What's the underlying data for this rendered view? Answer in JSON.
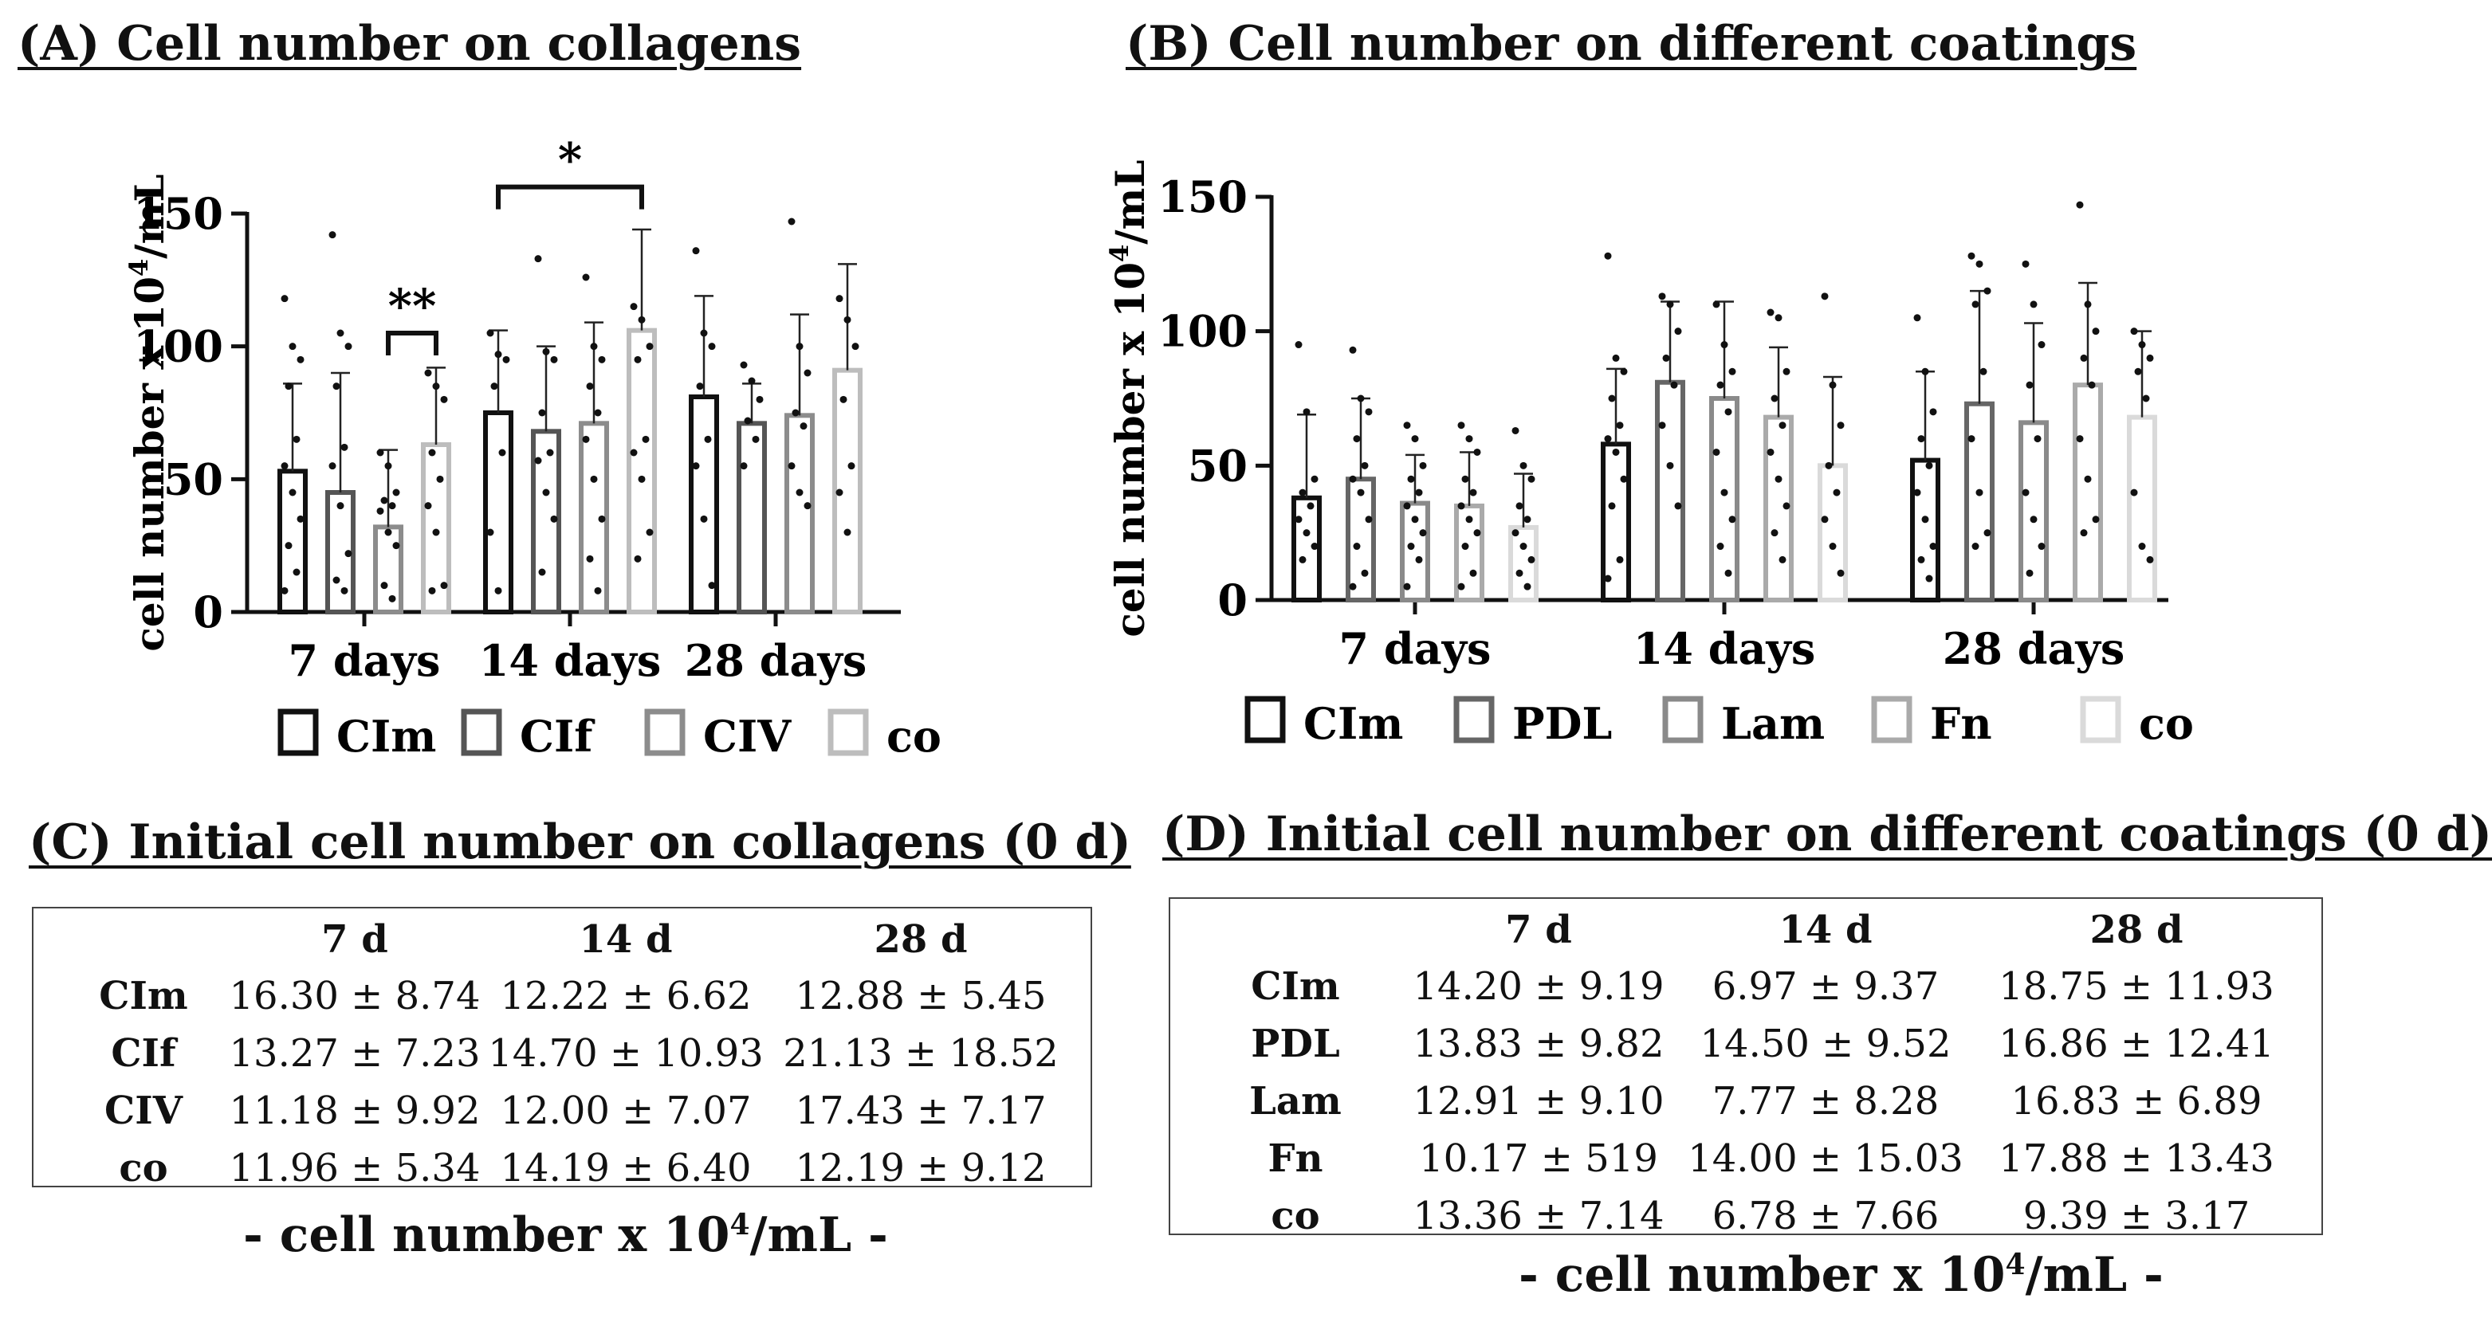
{
  "panel_a": {
    "title": "(A) Cell number on collagens"
  },
  "panel_b": {
    "title": "(B) Cell number on different coatings"
  },
  "panel_c": {
    "title": "(C) Initial cell number on collagens (0 d)",
    "columns": [
      "7 d",
      "14 d",
      "28 d"
    ],
    "rows": [
      {
        "label": "CIm",
        "values": [
          "16.30 ± 8.74",
          "12.22 ± 6.62",
          "12.88 ± 5.45"
        ]
      },
      {
        "label": "CIf",
        "values": [
          "13.27 ± 7.23",
          "14.70 ± 10.93",
          "21.13 ± 18.52"
        ]
      },
      {
        "label": "CIV",
        "values": [
          "11.18 ± 9.92",
          "12.00 ± 7.07",
          "17.43 ± 7.17"
        ]
      },
      {
        "label": "co",
        "values": [
          "11.96 ± 5.34",
          "14.19 ± 6.40",
          "12.19 ± 9.12"
        ]
      }
    ],
    "unit_prefix": "- cell number x 10",
    "unit_exp": "4",
    "unit_suffix": "/mL -"
  },
  "panel_d": {
    "title": "(D) Initial cell number on different coatings (0 d)",
    "columns": [
      "7 d",
      "14 d",
      "28 d"
    ],
    "rows": [
      {
        "label": "CIm",
        "values": [
          "14.20 ± 9.19",
          "6.97 ± 9.37",
          "18.75 ± 11.93"
        ]
      },
      {
        "label": "PDL",
        "values": [
          "13.83 ± 9.82",
          "14.50 ± 9.52",
          "16.86 ± 12.41"
        ]
      },
      {
        "label": "Lam",
        "values": [
          "12.91 ± 9.10",
          "7.77 ± 8.28",
          "16.83 ± 6.89"
        ]
      },
      {
        "label": "Fn",
        "values": [
          "10.17 ± 519",
          "14.00 ± 15.03",
          "17.88 ± 13.43"
        ]
      },
      {
        "label": "co",
        "values": [
          "13.36 ± 7.14",
          "6.78 ± 7.66",
          "9.39 ± 3.17"
        ]
      }
    ],
    "unit_prefix": "- cell number x 10",
    "unit_exp": "4",
    "unit_suffix": "/mL -"
  },
  "chart_data": [
    {
      "type": "bar",
      "id": "A",
      "title": "(A) Cell number on collagens",
      "ylabel_prefix": "cell number x 10",
      "ylabel_exp": "4",
      "ylabel_suffix": "/mL",
      "ylim": [
        0,
        150
      ],
      "yticks": [
        0,
        50,
        100,
        150
      ],
      "categories": [
        "7 days",
        "14 days",
        "28 days"
      ],
      "series": [
        {
          "name": "CIm",
          "color": "#111111",
          "values": [
            53,
            75,
            81
          ],
          "sd": [
            33,
            31,
            38
          ],
          "points": [
            [
              118,
              100,
              95,
              85,
              65,
              55,
              45,
              35,
              25,
              15,
              8
            ],
            [
              105,
              97,
              95,
              85,
              60,
              30,
              8
            ],
            [
              136,
              105,
              100,
              85,
              65,
              55,
              35,
              10
            ]
          ]
        },
        {
          "name": "CIf",
          "color": "#555555",
          "values": [
            45,
            68,
            71
          ],
          "sd": [
            45,
            32,
            15
          ],
          "points": [
            [
              142,
              105,
              100,
              85,
              62,
              55,
              40,
              22,
              12,
              8
            ],
            [
              133,
              98,
              95,
              75,
              60,
              57,
              45,
              35,
              15
            ],
            [
              93,
              87,
              80,
              72,
              65,
              55
            ]
          ]
        },
        {
          "name": "CIV",
          "color": "#8c8c8c",
          "values": [
            32,
            71,
            74
          ],
          "sd": [
            29,
            38,
            38
          ],
          "points": [
            [
              60,
              55,
              45,
              42,
              40,
              38,
              30,
              25,
              10,
              5
            ],
            [
              126,
              100,
              95,
              85,
              75,
              65,
              50,
              35,
              20,
              8
            ],
            [
              147,
              100,
              90,
              75,
              70,
              55,
              45,
              40
            ]
          ]
        },
        {
          "name": "co",
          "color": "#bdbdbd",
          "values": [
            63,
            106,
            91
          ],
          "sd": [
            29,
            38,
            40
          ],
          "points": [
            [
              90,
              85,
              80,
              60,
              50,
              40,
              30,
              10,
              8
            ],
            [
              115,
              110,
              100,
              95,
              65,
              60,
              50,
              30,
              20
            ],
            [
              118,
              110,
              100,
              80,
              55,
              45,
              30
            ]
          ]
        }
      ],
      "annotations": [
        {
          "label": "**",
          "from": {
            "category": "7 days",
            "series": "CIV"
          },
          "to": {
            "category": "7 days",
            "series": "co"
          },
          "y": 105
        },
        {
          "label": "*",
          "from": {
            "category": "14 days",
            "series": "CIm"
          },
          "to": {
            "category": "14 days",
            "series": "co"
          },
          "y": 160
        }
      ],
      "legend": [
        "CIm",
        "CIf",
        "CIV",
        "co"
      ],
      "legend_position": "bottom"
    },
    {
      "type": "bar",
      "id": "B",
      "title": "(B) Cell number on different coatings",
      "ylabel_prefix": "cell number x 10",
      "ylabel_exp": "4",
      "ylabel_suffix": "/mL",
      "ylim": [
        0,
        150
      ],
      "yticks": [
        0,
        50,
        100,
        150
      ],
      "categories": [
        "7 days",
        "14 days",
        "28 days"
      ],
      "series": [
        {
          "name": "CIm",
          "color": "#111111",
          "values": [
            38,
            58,
            52
          ],
          "sd": [
            31,
            28,
            33
          ],
          "points": [
            [
              95,
              70,
              45,
              40,
              35,
              30,
              25,
              20,
              15
            ],
            [
              128,
              90,
              85,
              75,
              65,
              60,
              55,
              45,
              35,
              15,
              8
            ],
            [
              105,
              85,
              70,
              60,
              50,
              40,
              30,
              20,
              15,
              8
            ]
          ]
        },
        {
          "name": "PDL",
          "color": "#666666",
          "values": [
            45,
            81,
            73
          ],
          "sd": [
            30,
            30,
            42
          ],
          "points": [
            [
              93,
              75,
              70,
              60,
              50,
              45,
              40,
              30,
              20,
              10,
              5
            ],
            [
              113,
              110,
              100,
              90,
              80,
              65,
              50,
              35
            ],
            [
              128,
              125,
              115,
              110,
              85,
              60,
              40,
              25,
              20
            ]
          ]
        },
        {
          "name": "Lam",
          "color": "#8a8a8a",
          "values": [
            36,
            75,
            66
          ],
          "sd": [
            18,
            36,
            37
          ],
          "points": [
            [
              65,
              60,
              50,
              45,
              40,
              35,
              30,
              25,
              20,
              15,
              5
            ],
            [
              110,
              95,
              85,
              80,
              70,
              55,
              40,
              30,
              20,
              10
            ],
            [
              125,
              110,
              95,
              80,
              60,
              40,
              30,
              20,
              10
            ]
          ]
        },
        {
          "name": "Fn",
          "color": "#aaaaaa",
          "values": [
            35,
            68,
            80
          ],
          "sd": [
            20,
            26,
            38
          ],
          "points": [
            [
              65,
              60,
              55,
              45,
              40,
              35,
              30,
              25,
              20,
              10,
              5
            ],
            [
              107,
              105,
              85,
              75,
              65,
              55,
              45,
              35,
              25,
              15
            ],
            [
              147,
              110,
              100,
              90,
              80,
              60,
              45,
              30,
              25
            ]
          ]
        },
        {
          "name": "co",
          "color": "#dadada",
          "values": [
            27,
            50,
            68
          ],
          "sd": [
            20,
            33,
            32
          ],
          "points": [
            [
              63,
              50,
              45,
              35,
              30,
              25,
              20,
              15,
              10,
              5
            ],
            [
              113,
              80,
              65,
              50,
              40,
              30,
              20,
              10
            ],
            [
              100,
              95,
              90,
              85,
              75,
              40,
              20,
              15
            ]
          ]
        }
      ],
      "legend": [
        "CIm",
        "PDL",
        "Lam",
        "Fn",
        "co"
      ],
      "legend_position": "bottom"
    }
  ]
}
